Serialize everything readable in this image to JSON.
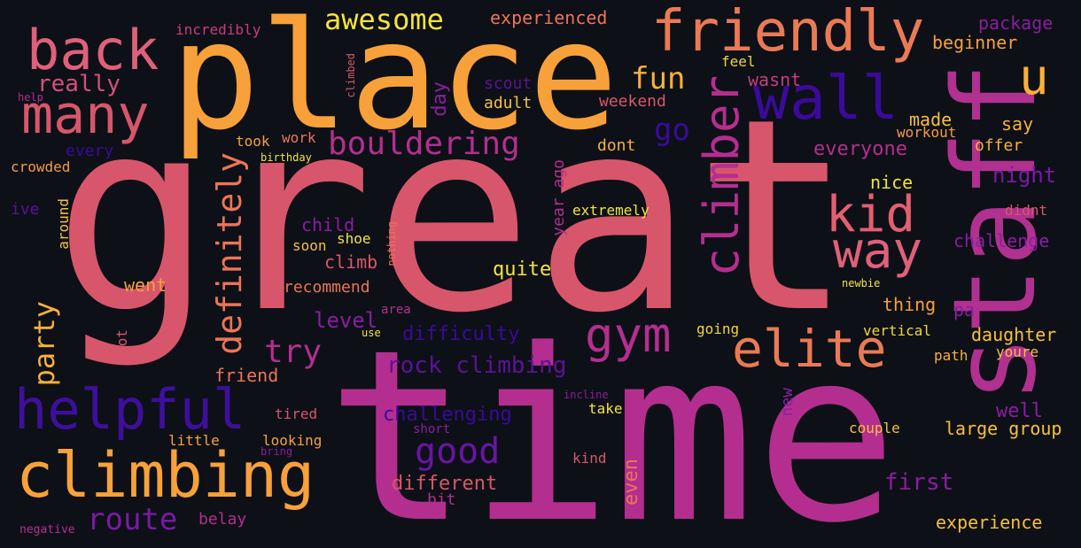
{
  "palette": {
    "background": "#0d1017",
    "pink": "#d8566b",
    "magenta": "#b42e8f",
    "orange": "#f89b40",
    "yellow": "#f3e43b",
    "salmon": "#ec7457",
    "purple": "#8a1ea0",
    "indigo": "#3a0a9a",
    "violet": "#5c1296"
  },
  "words": [
    {
      "id": "great",
      "text": "great"
    },
    {
      "id": "time",
      "text": "time"
    },
    {
      "id": "place",
      "text": "place"
    },
    {
      "id": "staff",
      "text": "staff"
    },
    {
      "id": "friendly",
      "text": "friendly"
    },
    {
      "id": "back",
      "text": "back"
    },
    {
      "id": "many",
      "text": "many"
    },
    {
      "id": "climbing",
      "text": "climbing"
    },
    {
      "id": "helpful",
      "text": "helpful"
    },
    {
      "id": "wall",
      "text": "wall"
    },
    {
      "id": "climber",
      "text": "climber"
    },
    {
      "id": "gym",
      "text": "gym"
    },
    {
      "id": "elite",
      "text": "elite"
    },
    {
      "id": "kid",
      "text": "kid"
    },
    {
      "id": "way",
      "text": "way"
    },
    {
      "id": "bouldering",
      "text": "bouldering"
    },
    {
      "id": "awesome",
      "text": "awesome"
    },
    {
      "id": "definitely",
      "text": "definitely"
    },
    {
      "id": "route",
      "text": "route"
    },
    {
      "id": "good",
      "text": "good"
    },
    {
      "id": "fun",
      "text": "fun"
    },
    {
      "id": "u",
      "text": "u"
    },
    {
      "id": "go",
      "text": "go"
    },
    {
      "id": "party",
      "text": "party"
    },
    {
      "id": "try",
      "text": "try"
    },
    {
      "id": "rock_climbing",
      "text": "rock climbing"
    },
    {
      "id": "really",
      "text": "really"
    },
    {
      "id": "experienced",
      "text": "experienced"
    },
    {
      "id": "incredibly",
      "text": "incredibly"
    },
    {
      "id": "package",
      "text": "package"
    },
    {
      "id": "beginner",
      "text": "beginner"
    },
    {
      "id": "feel",
      "text": "feel"
    },
    {
      "id": "wasnt",
      "text": "wasnt"
    },
    {
      "id": "made",
      "text": "made"
    },
    {
      "id": "workout",
      "text": "workout"
    },
    {
      "id": "say",
      "text": "say"
    },
    {
      "id": "offer",
      "text": "offer"
    },
    {
      "id": "night",
      "text": "night"
    },
    {
      "id": "didnt",
      "text": "didnt"
    },
    {
      "id": "challenge",
      "text": "challenge"
    },
    {
      "id": "everyone",
      "text": "everyone"
    },
    {
      "id": "nice",
      "text": "nice"
    },
    {
      "id": "dont",
      "text": "dont"
    },
    {
      "id": "weekend",
      "text": "weekend"
    },
    {
      "id": "adult",
      "text": "adult"
    },
    {
      "id": "scout",
      "text": "scout"
    },
    {
      "id": "day",
      "text": "day"
    },
    {
      "id": "climbed",
      "text": "climbed"
    },
    {
      "id": "help",
      "text": "help"
    },
    {
      "id": "took",
      "text": "took"
    },
    {
      "id": "work",
      "text": "work"
    },
    {
      "id": "every",
      "text": "every"
    },
    {
      "id": "birthday",
      "text": "birthday"
    },
    {
      "id": "crowded",
      "text": "crowded"
    },
    {
      "id": "ive",
      "text": "ive"
    },
    {
      "id": "around",
      "text": "around"
    },
    {
      "id": "child",
      "text": "child"
    },
    {
      "id": "shoe",
      "text": "shoe"
    },
    {
      "id": "soon",
      "text": "soon"
    },
    {
      "id": "climb",
      "text": "climb"
    },
    {
      "id": "nothing",
      "text": "nothing"
    },
    {
      "id": "year_ago",
      "text": "year ago"
    },
    {
      "id": "extremely",
      "text": "extremely"
    },
    {
      "id": "quite",
      "text": "quite"
    },
    {
      "id": "went",
      "text": "went"
    },
    {
      "id": "recommend",
      "text": "recommend"
    },
    {
      "id": "level",
      "text": "level"
    },
    {
      "id": "area",
      "text": "area"
    },
    {
      "id": "use",
      "text": "use"
    },
    {
      "id": "difficulty",
      "text": "difficulty"
    },
    {
      "id": "lot",
      "text": "lot"
    },
    {
      "id": "friend",
      "text": "friend"
    },
    {
      "id": "thing",
      "text": "thing"
    },
    {
      "id": "pa",
      "text": "pa"
    },
    {
      "id": "newbie",
      "text": "newbie"
    },
    {
      "id": "going",
      "text": "going"
    },
    {
      "id": "vertical",
      "text": "vertical"
    },
    {
      "id": "daughter",
      "text": "daughter"
    },
    {
      "id": "path",
      "text": "path"
    },
    {
      "id": "youre",
      "text": "youre"
    },
    {
      "id": "incline",
      "text": "incline"
    },
    {
      "id": "new",
      "text": "new"
    },
    {
      "id": "take",
      "text": "take"
    },
    {
      "id": "well",
      "text": "well"
    },
    {
      "id": "challenging",
      "text": "challenging"
    },
    {
      "id": "tired",
      "text": "tired"
    },
    {
      "id": "short",
      "text": "short"
    },
    {
      "id": "couple",
      "text": "couple"
    },
    {
      "id": "large_group",
      "text": "large group"
    },
    {
      "id": "little",
      "text": "little"
    },
    {
      "id": "looking",
      "text": "looking"
    },
    {
      "id": "bring",
      "text": "bring"
    },
    {
      "id": "kind",
      "text": "kind"
    },
    {
      "id": "different",
      "text": "different"
    },
    {
      "id": "even",
      "text": "even"
    },
    {
      "id": "first",
      "text": "first"
    },
    {
      "id": "bit",
      "text": "bit"
    },
    {
      "id": "belay",
      "text": "belay"
    },
    {
      "id": "negative",
      "text": "negative"
    },
    {
      "id": "experience",
      "text": "experience"
    }
  ]
}
